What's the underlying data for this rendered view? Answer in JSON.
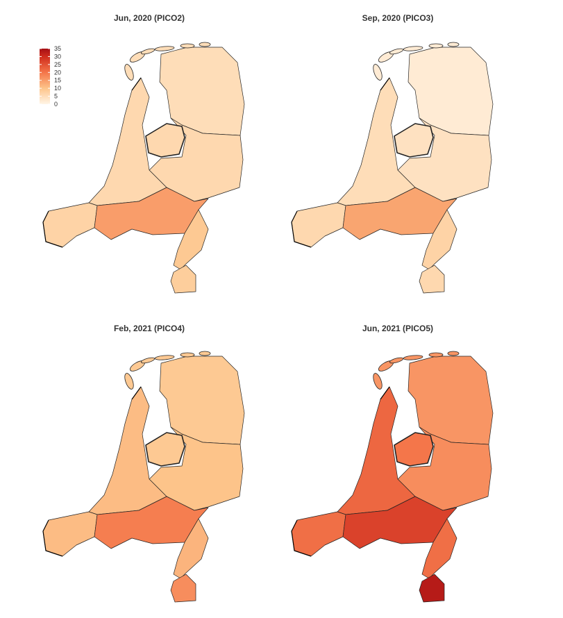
{
  "chart_data": {
    "type": "choropleth",
    "legend": {
      "placement": "top-left",
      "ticks": [
        "35",
        "30",
        "25",
        "20",
        "15",
        "10",
        "5",
        "0"
      ],
      "range": [
        0,
        35
      ]
    },
    "color_scale": {
      "low": "#fff5e6",
      "mid1": "#fdc48a",
      "mid2": "#f4764a",
      "mid3": "#cf2c1d",
      "high": "#a50f15"
    },
    "panels": [
      {
        "title": "Jun, 2020 (PICO2)",
        "regions": {
          "north": 5,
          "east": 6,
          "west": 6,
          "brabant": 15,
          "limburg": 9,
          "south_limburg": 8,
          "zeeland": 7,
          "flevoland": 6
        }
      },
      {
        "title": "Sep, 2020 (PICO3)",
        "regions": {
          "north": 2,
          "east": 4,
          "west": 5,
          "brabant": 14,
          "limburg": 7,
          "south_limburg": 6,
          "zeeland": 6,
          "flevoland": 4
        }
      },
      {
        "title": "Feb, 2021 (PICO4)",
        "regions": {
          "north": 9,
          "east": 10,
          "west": 11,
          "brabant": 19,
          "limburg": 12,
          "south_limburg": 17,
          "zeeland": 11,
          "flevoland": 9
        }
      },
      {
        "title": "Jun, 2021 (PICO5)",
        "regions": {
          "north": 16,
          "east": 17,
          "west": 22,
          "brabant": 27,
          "limburg": 21,
          "south_limburg": 33,
          "zeeland": 21,
          "flevoland": 20
        }
      }
    ]
  }
}
